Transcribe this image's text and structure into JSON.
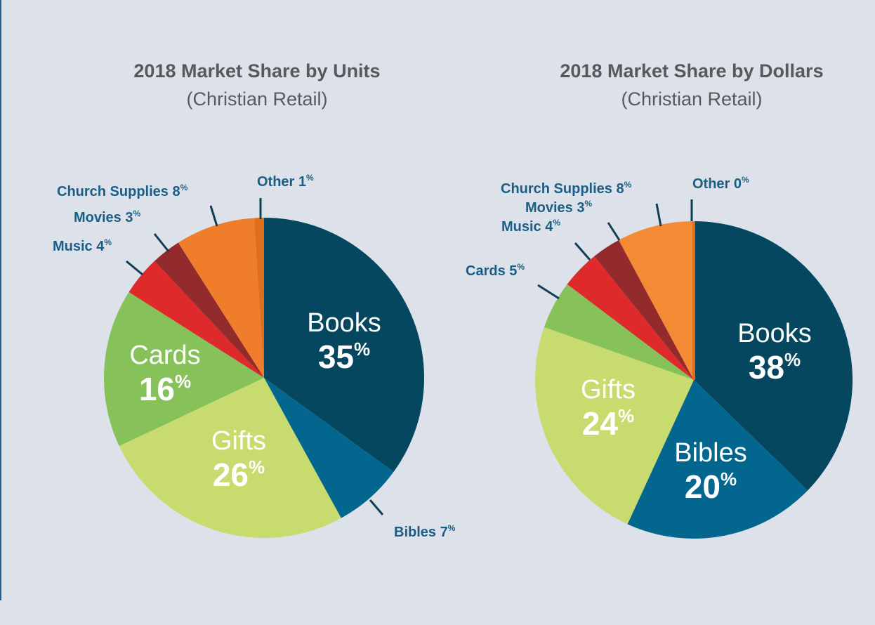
{
  "chart_data": [
    {
      "type": "pie",
      "title": "2018 Market Share by Units",
      "subtitle": "(Christian Retail)",
      "unit": "%",
      "slices": [
        {
          "label": "Books",
          "value": 35,
          "color": "#05475f"
        },
        {
          "label": "Bibles",
          "value": 7,
          "color": "#03668f"
        },
        {
          "label": "Gifts",
          "value": 26,
          "color": "#c8db6e"
        },
        {
          "label": "Cards",
          "value": 16,
          "color": "#86c259"
        },
        {
          "label": "Music",
          "value": 4,
          "color": "#de2a2a"
        },
        {
          "label": "Movies",
          "value": 3,
          "color": "#932a2c"
        },
        {
          "label": "Church Supplies",
          "value": 8,
          "color": "#ef7d2b"
        },
        {
          "label": "Other",
          "value": 1,
          "color": "#dd6e1e"
        }
      ]
    },
    {
      "type": "pie",
      "title": "2018 Market Share by Dollars",
      "subtitle": "(Christian Retail)",
      "unit": "%",
      "slices": [
        {
          "label": "Books",
          "value": 38,
          "color": "#05475f"
        },
        {
          "label": "Bibles",
          "value": 20,
          "color": "#03668f"
        },
        {
          "label": "Gifts",
          "value": 24,
          "color": "#c8db6e"
        },
        {
          "label": "Cards",
          "value": 5,
          "color": "#86c259"
        },
        {
          "label": "Music",
          "value": 4,
          "color": "#de2a2a"
        },
        {
          "label": "Movies",
          "value": 3,
          "color": "#932a2c"
        },
        {
          "label": "Church Supplies",
          "value": 8,
          "color": "#f58a35"
        },
        {
          "label": "Other",
          "value": 0,
          "color": "#dd6e1e"
        }
      ]
    }
  ]
}
